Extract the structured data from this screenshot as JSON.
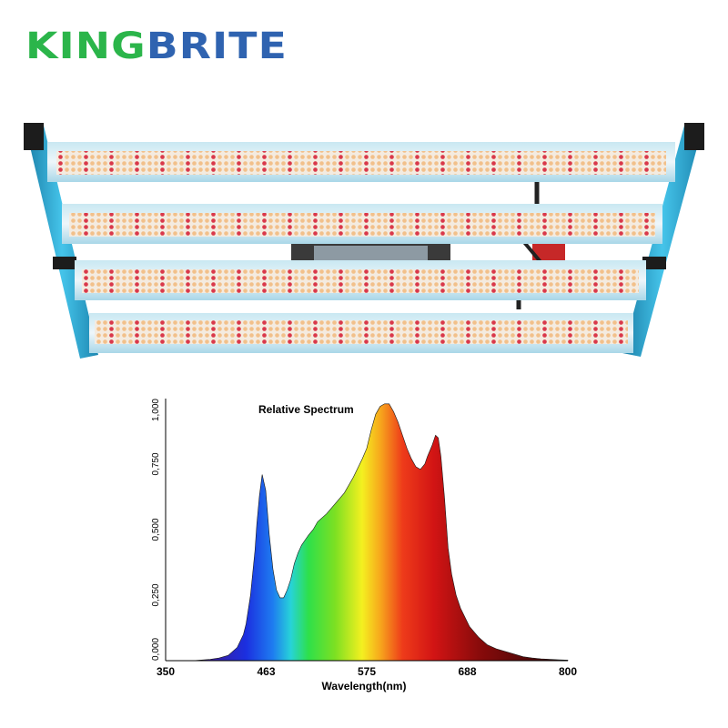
{
  "brand": {
    "name": "KINGBRITE",
    "part1": "KING",
    "part2": "BRITE",
    "color_green": "#2bb54a",
    "color_blue": "#2f63b0"
  },
  "product": {
    "icon": "led-grow-light-bar-fixture-icon",
    "bar_count": 4,
    "frame_color": "#2aa3cf"
  },
  "chart_data": {
    "type": "area",
    "title": "Relative Spectrum",
    "xlabel": "Wavelength(nm)",
    "ylabel": "",
    "xlim": [
      350,
      800
    ],
    "ylim": [
      0,
      1
    ],
    "x_ticks": [
      "350",
      "463",
      "575",
      "688",
      "800"
    ],
    "y_ticks": [
      "0,000",
      "0,250",
      "0,500",
      "0,750",
      "1,000"
    ],
    "grid": false,
    "fill": "visible-spectrum-gradient",
    "x": [
      350,
      380,
      400,
      410,
      420,
      430,
      437,
      440,
      445,
      450,
      452,
      455,
      458,
      462,
      466,
      470,
      474,
      478,
      482,
      486,
      490,
      494,
      498,
      502,
      506,
      510,
      515,
      520,
      530,
      540,
      550,
      560,
      570,
      575,
      580,
      585,
      590,
      595,
      600,
      605,
      610,
      615,
      620,
      625,
      630,
      635,
      640,
      643,
      648,
      652,
      655,
      658,
      662,
      666,
      670,
      675,
      680,
      690,
      700,
      710,
      720,
      730,
      740,
      750,
      760,
      770,
      780,
      790,
      800
    ],
    "values": [
      0.0,
      0.0,
      0.005,
      0.01,
      0.02,
      0.05,
      0.1,
      0.14,
      0.25,
      0.42,
      0.52,
      0.63,
      0.71,
      0.65,
      0.48,
      0.35,
      0.27,
      0.24,
      0.24,
      0.27,
      0.31,
      0.37,
      0.41,
      0.44,
      0.46,
      0.48,
      0.5,
      0.53,
      0.56,
      0.6,
      0.64,
      0.7,
      0.77,
      0.81,
      0.88,
      0.94,
      0.97,
      0.98,
      0.98,
      0.95,
      0.91,
      0.86,
      0.81,
      0.77,
      0.74,
      0.73,
      0.75,
      0.78,
      0.82,
      0.86,
      0.85,
      0.78,
      0.62,
      0.43,
      0.33,
      0.25,
      0.2,
      0.13,
      0.09,
      0.06,
      0.045,
      0.035,
      0.025,
      0.015,
      0.01,
      0.007,
      0.005,
      0.003,
      0.002
    ]
  }
}
